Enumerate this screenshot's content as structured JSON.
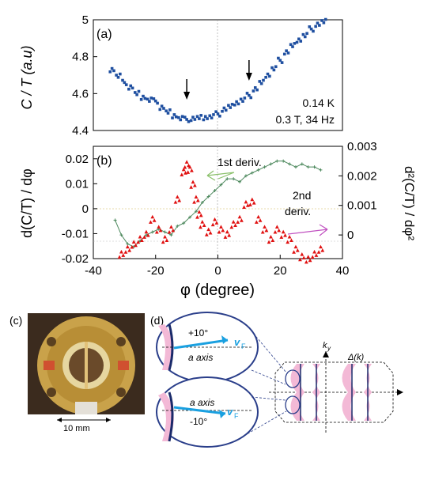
{
  "figure": {
    "panel_a_label": "(a)",
    "panel_b_label": "(b)",
    "panel_c_label": "(c)",
    "panel_d_label": "(d)",
    "annotation_temp": "0.14 K",
    "annotation_field": "0.3 T, 34 Hz",
    "label_1st": "1st deriv.",
    "label_2nd_line1": "2nd",
    "label_2nd_line2": "deriv.",
    "scale_label": "10 mm",
    "d_plus10": "+10°",
    "d_minus10": "-10°",
    "d_a_axis": "a axis",
    "d_vF": "v",
    "d_vF_sub": "F",
    "d_ky": "k",
    "d_ky_sub": "y",
    "d_delta_k": "Δ(k)"
  },
  "chart_data": [
    {
      "type": "scatter",
      "panel": "a",
      "ylabel": "C / T (a.u)",
      "xlim": [
        -40,
        40
      ],
      "ylim": [
        4.4,
        5.0
      ],
      "yticks": [
        4.4,
        4.6,
        4.8,
        5
      ],
      "arrows_at_x": [
        -10,
        10
      ],
      "series": [
        {
          "color": "#1f4fa0",
          "x": [
            -34,
            -32,
            -30,
            -28,
            -26,
            -24,
            -22,
            -20,
            -18,
            -16,
            -14,
            -12,
            -10,
            -8,
            -6,
            -4,
            -2,
            0,
            2,
            4,
            6,
            8,
            10,
            12,
            14,
            16,
            18,
            20,
            22,
            24,
            26,
            28,
            30,
            32,
            34
          ],
          "y": [
            4.73,
            4.7,
            4.66,
            4.63,
            4.6,
            4.58,
            4.57,
            4.56,
            4.52,
            4.5,
            4.48,
            4.47,
            4.46,
            4.46,
            4.47,
            4.47,
            4.48,
            4.49,
            4.51,
            4.53,
            4.55,
            4.57,
            4.59,
            4.62,
            4.66,
            4.7,
            4.74,
            4.78,
            4.82,
            4.86,
            4.89,
            4.92,
            4.95,
            4.97,
            4.99
          ]
        }
      ]
    },
    {
      "type": "scatter",
      "panel": "b",
      "xlabel": "φ (degree)",
      "ylabel": "d(C/T) / dφ",
      "ylabel_right": "d²(C/T) / dφ²",
      "xlim": [
        -40,
        40
      ],
      "xticks": [
        -40,
        -20,
        0,
        20,
        40
      ],
      "ylim": [
        -0.02,
        0.025
      ],
      "yticks": [
        -0.02,
        -0.01,
        0,
        0.01,
        0.02
      ],
      "ylim_right": [
        -0.0008,
        0.003
      ],
      "yticks_right": [
        0,
        0.001,
        0.002,
        0.003
      ],
      "series": [
        {
          "name": "1st deriv.",
          "color": "#4f8a5f",
          "axis": "right",
          "x": [
            -33,
            -31,
            -29,
            -27,
            -25,
            -23,
            -21,
            -19,
            -17,
            -15,
            -13,
            -11,
            -9,
            -7,
            -5,
            -3,
            -1,
            1,
            3,
            5,
            7,
            9,
            11,
            13,
            15,
            17,
            19,
            21,
            23,
            25,
            27,
            29,
            31,
            33
          ],
          "y": [
            0.0005,
            0.0,
            -0.0003,
            -0.0004,
            -0.0002,
            0.0,
            0.0001,
            0.0002,
            0.0001,
            0.0,
            0.0003,
            0.0004,
            0.0006,
            0.0008,
            0.0011,
            0.0013,
            0.0015,
            0.0017,
            0.0019,
            0.0019,
            0.0018,
            0.002,
            0.0021,
            0.0022,
            0.0023,
            0.0024,
            0.0025,
            0.0025,
            0.0024,
            0.0023,
            0.0024,
            0.0023,
            0.0023,
            0.0022
          ]
        },
        {
          "name": "2nd deriv.",
          "color": "#e01010",
          "axis": "left",
          "x": [
            -31,
            -29,
            -27,
            -25,
            -23,
            -21,
            -19,
            -17,
            -15,
            -13,
            -11,
            -10,
            -9,
            -8,
            -7,
            -6,
            -5,
            -3,
            -1,
            1,
            3,
            5,
            7,
            9,
            11,
            13,
            15,
            17,
            19,
            21,
            23,
            25,
            27,
            29,
            31,
            33
          ],
          "y": [
            -0.018,
            -0.016,
            -0.014,
            -0.012,
            -0.01,
            -0.004,
            -0.008,
            -0.012,
            -0.008,
            0.004,
            0.015,
            0.018,
            0.016,
            0.01,
            0.004,
            -0.002,
            -0.006,
            -0.009,
            -0.005,
            -0.008,
            -0.01,
            -0.006,
            -0.004,
            0.002,
            0.003,
            -0.004,
            -0.008,
            -0.012,
            -0.008,
            -0.01,
            -0.012,
            -0.016,
            -0.019,
            -0.02,
            -0.018,
            -0.016
          ]
        }
      ]
    }
  ]
}
